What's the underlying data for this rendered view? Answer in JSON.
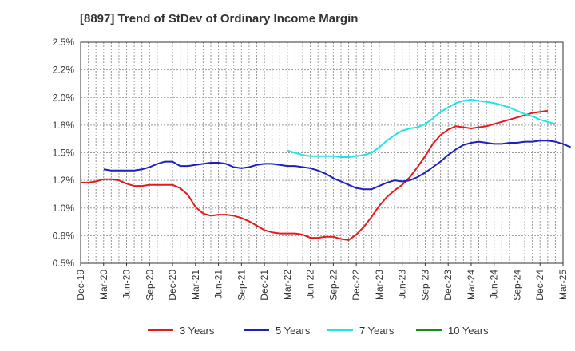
{
  "chart_data": {
    "type": "line",
    "title": "[8897]  Trend of StDev of Ordinary Income Margin",
    "xlabel": "",
    "ylabel": "",
    "ylim": [
      0.5,
      2.5
    ],
    "y_ticks": [
      "2.5%",
      "2.2%",
      "2.0%",
      "1.8%",
      "1.5%",
      "1.2%",
      "1.0%",
      "0.8%",
      "0.5%"
    ],
    "x_ticks": [
      "Dec-19",
      "Mar-20",
      "Jun-20",
      "Sep-20",
      "Dec-20",
      "Mar-21",
      "Jun-21",
      "Sep-21",
      "Dec-21",
      "Mar-22",
      "Jun-22",
      "Sep-22",
      "Dec-22",
      "Mar-23",
      "Jun-23",
      "Sep-23",
      "Dec-23",
      "Mar-24",
      "Jun-24",
      "Sep-24",
      "Dec-24",
      "Mar-25"
    ],
    "grid": true,
    "legend_position": "bottom",
    "series": [
      {
        "name": "3 Years",
        "color": "#e41a1c",
        "start_month": 0,
        "values": [
          1.23,
          1.23,
          1.24,
          1.26,
          1.26,
          1.25,
          1.22,
          1.2,
          1.2,
          1.21,
          1.21,
          1.21,
          1.21,
          1.18,
          1.12,
          1.01,
          0.95,
          0.93,
          0.94,
          0.94,
          0.93,
          0.91,
          0.88,
          0.84,
          0.8,
          0.78,
          0.77,
          0.77,
          0.77,
          0.76,
          0.73,
          0.73,
          0.74,
          0.74,
          0.72,
          0.71,
          0.76,
          0.83,
          0.92,
          1.02,
          1.1,
          1.16,
          1.21,
          1.28,
          1.37,
          1.47,
          1.58,
          1.66,
          1.71,
          1.74,
          1.73,
          1.72,
          1.73,
          1.74,
          1.76,
          1.78,
          1.8,
          1.82,
          1.84,
          1.86,
          1.87,
          1.88
        ]
      },
      {
        "name": "5 Years",
        "color": "#1f1fbf",
        "start_month": 3,
        "values": [
          1.35,
          1.34,
          1.34,
          1.34,
          1.34,
          1.35,
          1.37,
          1.4,
          1.42,
          1.42,
          1.38,
          1.38,
          1.39,
          1.4,
          1.41,
          1.41,
          1.4,
          1.37,
          1.36,
          1.37,
          1.39,
          1.4,
          1.4,
          1.39,
          1.38,
          1.38,
          1.37,
          1.36,
          1.34,
          1.31,
          1.27,
          1.24,
          1.21,
          1.18,
          1.17,
          1.17,
          1.2,
          1.23,
          1.25,
          1.24,
          1.25,
          1.28,
          1.32,
          1.37,
          1.42,
          1.48,
          1.53,
          1.57,
          1.59,
          1.6,
          1.59,
          1.58,
          1.58,
          1.59,
          1.59,
          1.6,
          1.6,
          1.61,
          1.61,
          1.6,
          1.58,
          1.55
        ]
      },
      {
        "name": "7 Years",
        "color": "#1ee6e6",
        "start_month": 27,
        "values": [
          1.52,
          1.5,
          1.48,
          1.47,
          1.47,
          1.47,
          1.47,
          1.46,
          1.46,
          1.47,
          1.48,
          1.5,
          1.55,
          1.61,
          1.66,
          1.7,
          1.72,
          1.73,
          1.76,
          1.81,
          1.87,
          1.91,
          1.95,
          1.97,
          1.98,
          1.97,
          1.96,
          1.95,
          1.93,
          1.91,
          1.88,
          1.85,
          1.83,
          1.8,
          1.78,
          1.76
        ]
      },
      {
        "name": "10 Years",
        "color": "#1a8a1a",
        "start_month": 0,
        "values": []
      }
    ]
  }
}
